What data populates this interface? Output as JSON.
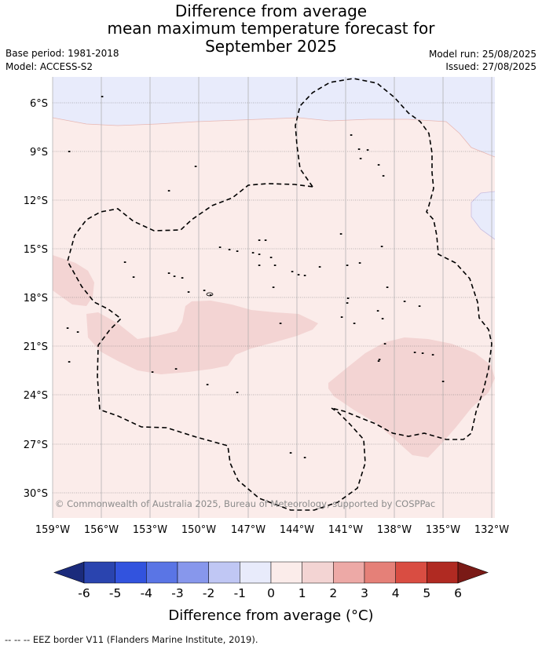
{
  "title": {
    "line1": "Difference from average",
    "line2": "mean maximum temperature forecast for",
    "line3": "September 2025"
  },
  "meta": {
    "base_period": "Base period: 1981-2018",
    "model": "Model: ACCESS-S2",
    "model_run": "Model run: 25/08/2025",
    "issued": "Issued: 27/08/2025"
  },
  "map": {
    "lat_labels": [
      "6°S",
      "9°S",
      "12°S",
      "15°S",
      "18°S",
      "21°S",
      "24°S",
      "27°S",
      "30°S"
    ],
    "lon_labels": [
      "159°W",
      "156°W",
      "153°W",
      "150°W",
      "147°W",
      "144°W",
      "141°W",
      "138°W",
      "135°W",
      "132°W"
    ],
    "copyright": "© Commonwealth of Australia 2025, Bureau of Meteorology, supported by COSPPac",
    "colors": {
      "band_-1_0": "#e8ebfb",
      "band_0_1": "#fbecea",
      "band_1_2": "#f3d4d3",
      "grid": "#999999",
      "eez": "#000000"
    }
  },
  "colorbar": {
    "ticks": [
      "-6",
      "-5",
      "-4",
      "-3",
      "-2",
      "-1",
      "0",
      "1",
      "2",
      "3",
      "4",
      "5",
      "6"
    ],
    "colors": [
      "#2a44af",
      "#3253de",
      "#5a75e5",
      "#8797ec",
      "#c0c7f4",
      "#e8ebfb",
      "#fbecea",
      "#f3d4d3",
      "#eda9a6",
      "#e58078",
      "#d94d42",
      "#b02a22"
    ],
    "under_color": "#1b2b7c",
    "over_color": "#7a1a16",
    "title": "Difference from average (°C)"
  },
  "footer": "--  --  -- EEZ border V11 (Flanders Marine Institute, 2019)."
}
